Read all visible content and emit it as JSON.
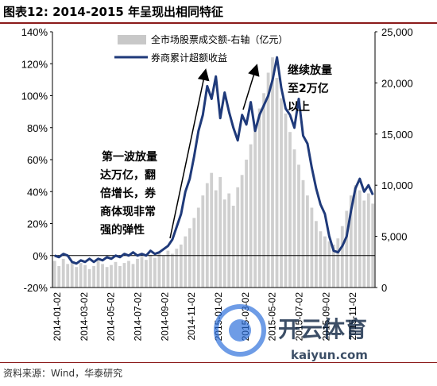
{
  "title": "图表12:  2014-2015 年呈现出相同特征",
  "source": "资料来源：Wind，华泰研究",
  "watermark": {
    "cn": "开云体育",
    "en": "kaiyun.com"
  },
  "chart_data": {
    "type": "bar+line",
    "y_left": {
      "ticks": [
        "140%",
        "120%",
        "100%",
        "80%",
        "60%",
        "40%",
        "20%",
        "0%",
        "-20%"
      ],
      "range": [
        -20,
        140
      ]
    },
    "y_right": {
      "ticks": [
        "25,000",
        "20,000",
        "15,000",
        "10,000",
        "5,000",
        "0"
      ],
      "range": [
        0,
        25000
      ]
    },
    "x_ticks": [
      "2014-01-02",
      "2014-03-02",
      "2014-05-02",
      "2014-07-02",
      "2014-09-02",
      "2014-11-02",
      "2015-01-02",
      "2015-03-02",
      "2015-05-02",
      "2015-07-02",
      "2015-09-02",
      "2015-11-02"
    ],
    "legend": [
      {
        "name": "全市场股票成交额-右轴（亿元）",
        "color": "#c8c8c8"
      },
      {
        "name": "券商累计超额收益",
        "color": "#1f3a7a"
      }
    ],
    "annotations": [
      {
        "lines": [
          "第一波放量",
          "达万亿，翻",
          "倍增长，券",
          "商体现非常",
          "强的弹性"
        ]
      },
      {
        "lines": [
          "继续放量",
          "至2万亿",
          "以上"
        ]
      }
    ],
    "bars": [
      [
        0,
        2600
      ],
      [
        1,
        2100
      ],
      [
        2,
        2800
      ],
      [
        3,
        2300
      ],
      [
        4,
        2500
      ],
      [
        5,
        2000
      ],
      [
        6,
        2400
      ],
      [
        7,
        2200
      ],
      [
        8,
        1800
      ],
      [
        9,
        2100
      ],
      [
        10,
        2600
      ],
      [
        11,
        2300
      ],
      [
        12,
        2000
      ],
      [
        13,
        2200
      ],
      [
        14,
        2500
      ],
      [
        15,
        2100
      ],
      [
        16,
        2400
      ],
      [
        17,
        2600
      ],
      [
        18,
        2300
      ],
      [
        19,
        2800
      ],
      [
        20,
        3000
      ],
      [
        21,
        2700
      ],
      [
        22,
        3200
      ],
      [
        23,
        2900
      ],
      [
        24,
        3400
      ],
      [
        25,
        3100
      ],
      [
        26,
        3600
      ],
      [
        27,
        3300
      ],
      [
        28,
        3800
      ],
      [
        29,
        4200
      ],
      [
        30,
        5000
      ],
      [
        31,
        5800
      ],
      [
        32,
        6800
      ],
      [
        33,
        7800
      ],
      [
        34,
        9000
      ],
      [
        35,
        10200
      ],
      [
        36,
        11200
      ],
      [
        37,
        9500
      ],
      [
        38,
        10800
      ],
      [
        39,
        8600
      ],
      [
        40,
        9200
      ],
      [
        41,
        8000
      ],
      [
        42,
        9800
      ],
      [
        43,
        11000
      ],
      [
        44,
        12500
      ],
      [
        45,
        14000
      ],
      [
        46,
        15800
      ],
      [
        47,
        17500
      ],
      [
        48,
        19000
      ],
      [
        49,
        21000
      ],
      [
        50,
        22500
      ],
      [
        51,
        20500
      ],
      [
        52,
        18500
      ],
      [
        53,
        17000
      ],
      [
        54,
        15200
      ],
      [
        55,
        13500
      ],
      [
        56,
        12000
      ],
      [
        57,
        10500
      ],
      [
        58,
        9000
      ],
      [
        59,
        7800
      ],
      [
        60,
        6500
      ],
      [
        61,
        5500
      ],
      [
        62,
        5000
      ],
      [
        63,
        4500
      ],
      [
        64,
        4200
      ],
      [
        65,
        4800
      ],
      [
        66,
        6000
      ],
      [
        67,
        7500
      ],
      [
        68,
        9000
      ],
      [
        69,
        10000
      ],
      [
        70,
        9500
      ],
      [
        71,
        8500
      ],
      [
        72,
        9200
      ],
      [
        73,
        8200
      ]
    ],
    "line": [
      [
        0,
        0
      ],
      [
        1,
        -1
      ],
      [
        2,
        1
      ],
      [
        3,
        0
      ],
      [
        4,
        -4
      ],
      [
        5,
        -5
      ],
      [
        6,
        -3
      ],
      [
        7,
        -4
      ],
      [
        8,
        -2
      ],
      [
        9,
        -4
      ],
      [
        10,
        -2
      ],
      [
        11,
        -3
      ],
      [
        12,
        -1
      ],
      [
        13,
        -2
      ],
      [
        14,
        0
      ],
      [
        15,
        -1
      ],
      [
        16,
        1
      ],
      [
        17,
        0
      ],
      [
        18,
        2
      ],
      [
        19,
        0
      ],
      [
        20,
        1
      ],
      [
        21,
        0
      ],
      [
        22,
        3
      ],
      [
        23,
        1
      ],
      [
        24,
        2
      ],
      [
        25,
        4
      ],
      [
        26,
        6
      ],
      [
        27,
        10
      ],
      [
        28,
        18
      ],
      [
        29,
        26
      ],
      [
        30,
        40
      ],
      [
        31,
        48
      ],
      [
        32,
        62
      ],
      [
        33,
        78
      ],
      [
        34,
        88
      ],
      [
        35,
        106
      ],
      [
        36,
        98
      ],
      [
        37,
        112
      ],
      [
        38,
        86
      ],
      [
        39,
        102
      ],
      [
        40,
        90
      ],
      [
        41,
        80
      ],
      [
        42,
        72
      ],
      [
        43,
        88
      ],
      [
        44,
        82
      ],
      [
        45,
        96
      ],
      [
        46,
        78
      ],
      [
        47,
        88
      ],
      [
        48,
        94
      ],
      [
        49,
        100
      ],
      [
        50,
        110
      ],
      [
        51,
        124
      ],
      [
        52,
        105
      ],
      [
        53,
        92
      ],
      [
        54,
        88
      ],
      [
        55,
        80
      ],
      [
        56,
        98
      ],
      [
        57,
        75
      ],
      [
        58,
        70
      ],
      [
        59,
        55
      ],
      [
        60,
        42
      ],
      [
        61,
        32
      ],
      [
        62,
        26
      ],
      [
        63,
        12
      ],
      [
        64,
        3
      ],
      [
        65,
        2
      ],
      [
        66,
        6
      ],
      [
        67,
        12
      ],
      [
        68,
        28
      ],
      [
        69,
        42
      ],
      [
        70,
        48
      ],
      [
        71,
        40
      ],
      [
        72,
        44
      ],
      [
        73,
        38
      ]
    ]
  }
}
